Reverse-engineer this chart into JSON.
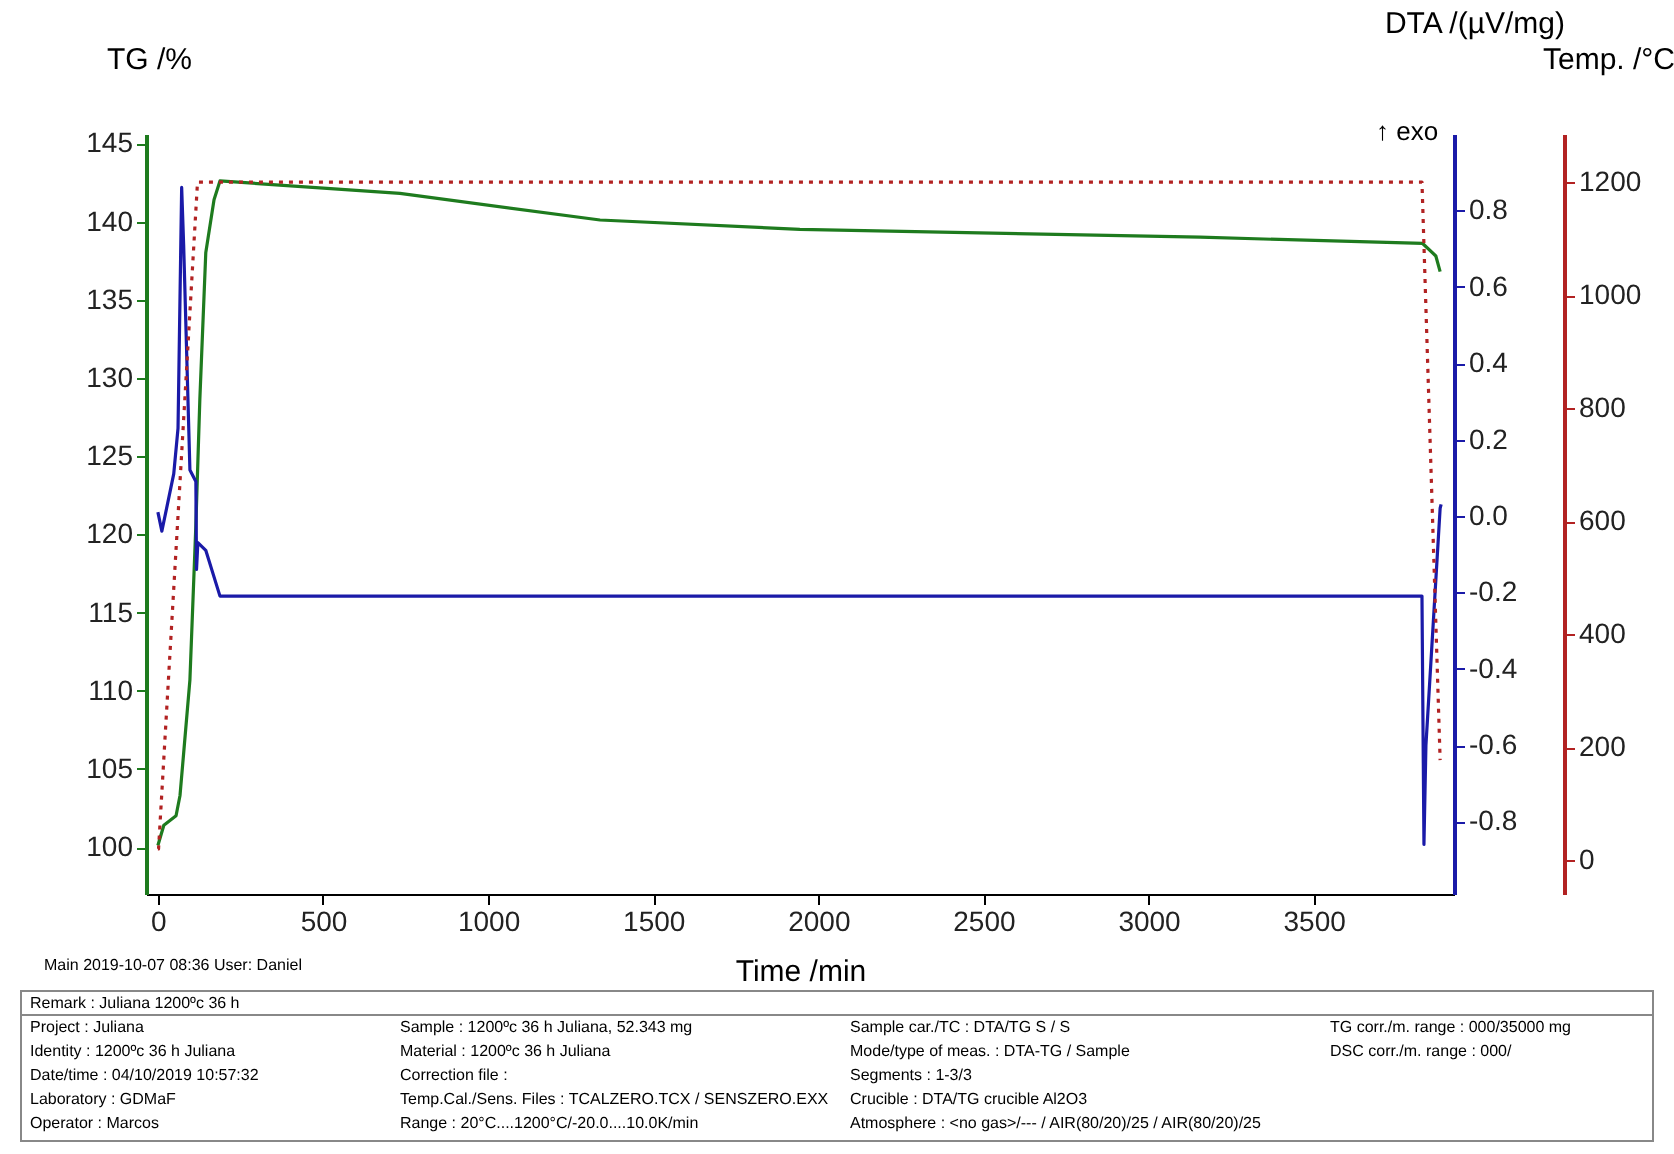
{
  "chart_data": {
    "type": "line",
    "xlabel": "Time /min",
    "ylabel": "TG /%",
    "y2label": "DTA /(µV/mg)",
    "y3label": "Temp. /°C",
    "xlim": [
      -36,
      3925
    ],
    "xticks": [
      0,
      500,
      1000,
      1500,
      2000,
      2500,
      3000,
      3500
    ],
    "ylim": [
      97,
      145.6
    ],
    "yticks": [
      100,
      105,
      110,
      115,
      120,
      125,
      130,
      135,
      140,
      145
    ],
    "y2lim": [
      -0.99,
      1.0
    ],
    "y2ticks": [
      -0.8,
      -0.6,
      -0.4,
      -0.2,
      {
        "value": 0,
        "label": "0.0"
      },
      0.2,
      0.4,
      0.6,
      0.8
    ],
    "y3lim": [
      -60,
      1285
    ],
    "y3ticks": [
      0,
      200,
      400,
      600,
      800,
      1000,
      1200
    ],
    "grid": false,
    "series": [
      {
        "color": "#1e7b1e",
        "axis": "y",
        "line_style": "solid",
        "x": [
          0,
          18,
          55,
          67,
          78,
          97,
          115,
          127,
          145,
          170,
          188,
          733,
          1339,
          1944,
          3156,
          3830,
          3870,
          3883
        ],
        "values": [
          100.1,
          101.4,
          102.0,
          103.3,
          106.0,
          110.7,
          120.6,
          128.6,
          138.0,
          141.4,
          142.6,
          141.8,
          140.1,
          139.5,
          139.0,
          138.6,
          137.8,
          136.8
        ]
      },
      {
        "color": "#1a1aa8",
        "axis": "y2",
        "line_style": "solid",
        "x": [
          0,
          12,
          48,
          61,
          72,
          78,
          97,
          115,
          117,
          121,
          145,
          188,
          3828,
          3834,
          3840,
          3883,
          3886
        ],
        "values": [
          0.01,
          -0.04,
          0.11,
          0.23,
          0.86,
          0.71,
          0.12,
          0.09,
          -0.14,
          -0.07,
          -0.09,
          -0.21,
          -0.21,
          -0.86,
          -0.6,
          0.02,
          0.03
        ]
      },
      {
        "color": "#b22222",
        "axis": "y3",
        "line_style": "dotted",
        "x": [
          0,
          2,
          120,
          3828,
          3883
        ],
        "values": [
          20,
          20,
          1200,
          1200,
          177
        ]
      }
    ],
    "annotations": [
      "↑ exo",
      "Main   2019-10-07 08:36   User: Daniel",
      "Remark :  Juliana 1200ºc 36 h",
      "Project :  Juliana",
      "Identity :  1200ºc 36 h Juliana",
      "Date/time :  04/10/2019 10:57:32",
      "Laboratory :  GDMaF",
      "Operator :  Marcos",
      "Sample :  1200ºc 36 h Juliana, 52.343 mg",
      "Material :  1200ºc 36 h Juliana",
      "Correction file :",
      "Temp.Cal./Sens. Files :  TCALZERO.TCX / SENSZERO.EXX",
      "Range :  20°C....1200°C/-20.0....10.0K/min",
      "Sample car./TC :  DTA/TG S / S",
      "Mode/type of meas. :  DTA-TG / Sample",
      "Segments :  1-3/3",
      "Crucible :  DTA/TG crucible Al2O3",
      "Atmosphere :  <no gas>/--- / AIR(80/20)/25 / AIR(80/20)/25",
      "TG corr./m. range :  000/35000 mg",
      "DSC corr./m. range :  000/"
    ]
  }
}
